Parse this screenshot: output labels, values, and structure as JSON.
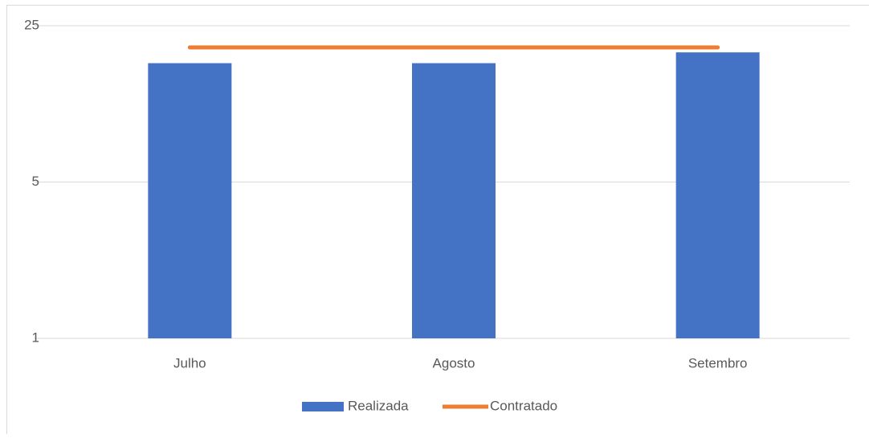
{
  "chart_data": {
    "type": "bar",
    "categories": [
      "Julho",
      "Agosto",
      "Setembro"
    ],
    "series": [
      {
        "name": "Realizada",
        "type": "bar",
        "color": "#4472c4",
        "values": [
          17,
          17,
          19
        ]
      },
      {
        "name": "Contratado",
        "type": "line",
        "color": "#ed7d31",
        "values": [
          20,
          20,
          20
        ]
      }
    ],
    "ylim": [
      1,
      25
    ],
    "yticks": [
      1,
      5,
      25
    ],
    "log_scale": true,
    "grid": true,
    "legend": "bottom"
  }
}
